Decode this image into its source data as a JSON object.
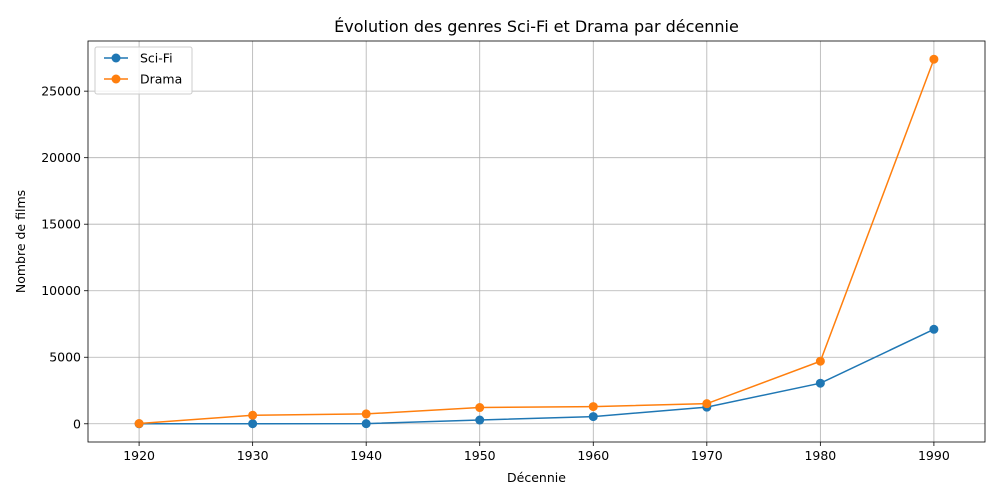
{
  "chart_data": {
    "type": "line",
    "title": "Évolution des genres Sci-Fi et Drama par décennie",
    "xlabel": "Décennie",
    "ylabel": "Nombre de films",
    "x": [
      1920,
      1930,
      1940,
      1950,
      1960,
      1970,
      1980,
      1990
    ],
    "xticks": [
      "1920",
      "1930",
      "1940",
      "1950",
      "1960",
      "1970",
      "1980",
      "1990"
    ],
    "yticks": [
      "0",
      "5000",
      "10000",
      "15000",
      "20000",
      "25000"
    ],
    "xlim": [
      1915.5,
      1994.5
    ],
    "ylim": [
      -1370,
      28770
    ],
    "grid": true,
    "legend_position": "upper-left",
    "series": [
      {
        "name": "Sci-Fi",
        "color": "#1f77b4",
        "marker": "circle",
        "values": [
          0,
          5,
          10,
          280,
          540,
          1250,
          3050,
          7100
        ]
      },
      {
        "name": "Drama",
        "color": "#ff7f0e",
        "marker": "circle",
        "values": [
          20,
          640,
          740,
          1220,
          1290,
          1510,
          4700,
          27400
        ]
      }
    ]
  }
}
